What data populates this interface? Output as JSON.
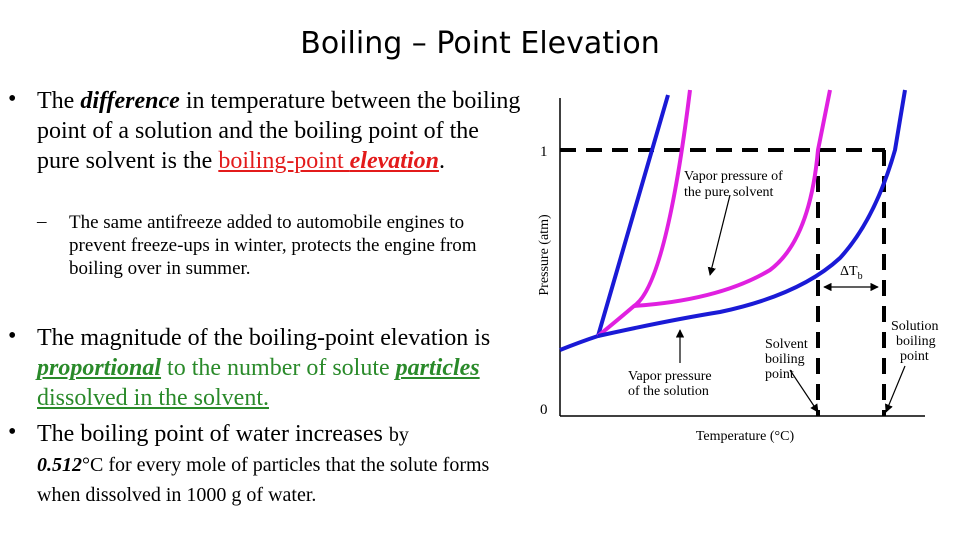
{
  "slide": {
    "title": "Boiling – Point Elevation",
    "bullet1": {
      "t1": "The ",
      "t2": "difference",
      "t3": " in temperature between the boiling point of a solution and the boiling point of the pure solvent is the ",
      "t4": "boiling-point ",
      "t5": "elevation",
      "t6": "."
    },
    "sub1": "The same antifreeze added to automobile engines to prevent freeze-ups in winter, protects the engine from boiling over in summer.",
    "bullet2": {
      "t1": "The magnitude of the boiling-point elevation is ",
      "t2": "proportional",
      "t3": " to the number of solute ",
      "t4": "particles",
      "t5": " dissolved in the solvent."
    },
    "bullet3": {
      "t1": "The boiling point of water increases ",
      "t2": "by",
      "t3": "0.512",
      "t4": "°C for every mole of particles that the solute forms when dissolved in 1000 g of water."
    }
  },
  "diagram": {
    "ylabel": "Pressure (atm)",
    "xlabel": "Temperature (°C)",
    "tick_1": "1",
    "tick_0": "0",
    "label_pure_1": "Vapor pressure of",
    "label_pure_2": "the pure solvent",
    "label_solution_1": "Vapor pressure",
    "label_solution_2": "of the solution",
    "label_solvent_bp_1": "Solvent",
    "label_solvent_bp_2": "boiling",
    "label_solvent_bp_3": "point",
    "label_solution_bp_1": "Solution",
    "label_solution_bp_2": "boiling",
    "label_solution_bp_3": "point",
    "label_delta": "ΔT",
    "label_delta_sub": "b",
    "colors": {
      "solid_curve": "#1a1ad6",
      "pure_curve": "#e020e0",
      "dashed": "#000000"
    }
  }
}
